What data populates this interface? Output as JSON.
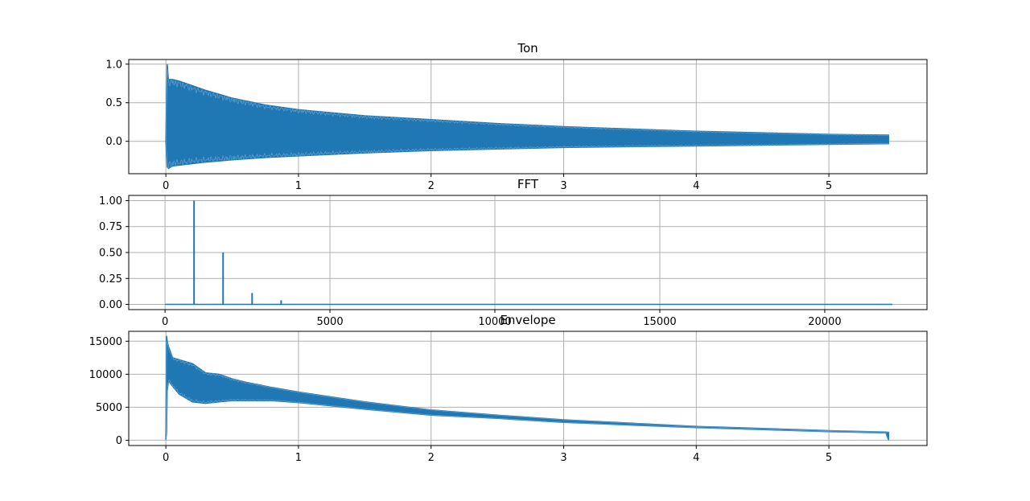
{
  "colors": {
    "series": "#1f77b4",
    "grid": "#b0b0b0",
    "axes": "#000000"
  },
  "chart_data": [
    {
      "type": "line",
      "title": "Ton",
      "xlabel": "",
      "ylabel": "",
      "xlim": [
        -0.28,
        5.74
      ],
      "ylim": [
        -0.42,
        1.06
      ],
      "grid": true,
      "xticks": [
        0,
        1,
        2,
        3,
        4,
        5
      ],
      "xtick_labels": [
        "0",
        "1",
        "2",
        "3",
        "4",
        "5"
      ],
      "yticks": [
        0.0,
        0.5,
        1.0
      ],
      "ytick_labels": [
        "0.0",
        "0.5",
        "1.0"
      ],
      "envelope": {
        "x": [
          0.0,
          0.01,
          0.02,
          0.05,
          0.1,
          0.2,
          0.3,
          0.5,
          0.75,
          1.0,
          1.5,
          2.0,
          2.5,
          3.0,
          3.5,
          4.0,
          4.5,
          5.0,
          5.45
        ],
        "upper": [
          0.0,
          1.0,
          0.8,
          0.8,
          0.78,
          0.72,
          0.66,
          0.56,
          0.47,
          0.41,
          0.33,
          0.28,
          0.23,
          0.19,
          0.16,
          0.13,
          0.11,
          0.09,
          0.08
        ],
        "lower": [
          0.0,
          -0.33,
          -0.35,
          -0.32,
          -0.31,
          -0.29,
          -0.27,
          -0.24,
          -0.21,
          -0.19,
          -0.15,
          -0.12,
          -0.1,
          -0.08,
          -0.07,
          -0.06,
          -0.05,
          -0.04,
          -0.03
        ]
      }
    },
    {
      "type": "line",
      "title": "FFT",
      "xlabel": "",
      "ylabel": "",
      "xlim": [
        -1100,
        23100
      ],
      "ylim": [
        -0.05,
        1.05
      ],
      "grid": true,
      "xticks": [
        0,
        5000,
        10000,
        15000,
        20000
      ],
      "xtick_labels": [
        "0",
        "5000",
        "10000",
        "15000",
        "20000"
      ],
      "yticks": [
        0.0,
        0.25,
        0.5,
        0.75,
        1.0
      ],
      "ytick_labels": [
        "0.00",
        "0.25",
        "0.50",
        "0.75",
        "1.00"
      ],
      "baseline_x_range": [
        0,
        22050
      ],
      "peaks": [
        {
          "x": 880,
          "y": 1.0
        },
        {
          "x": 1760,
          "y": 0.5
        },
        {
          "x": 2640,
          "y": 0.11
        },
        {
          "x": 3520,
          "y": 0.04
        }
      ]
    },
    {
      "type": "line",
      "title": "Envelope",
      "xlabel": "",
      "ylabel": "",
      "xlim": [
        -0.28,
        5.74
      ],
      "ylim": [
        -800,
        16500
      ],
      "grid": true,
      "xticks": [
        0,
        1,
        2,
        3,
        4,
        5
      ],
      "xtick_labels": [
        "0",
        "1",
        "2",
        "3",
        "4",
        "5"
      ],
      "yticks": [
        0,
        5000,
        10000,
        15000
      ],
      "ytick_labels": [
        "0",
        "5000",
        "10000",
        "15000"
      ],
      "envelope": {
        "x": [
          0.0,
          0.005,
          0.01,
          0.02,
          0.05,
          0.1,
          0.2,
          0.3,
          0.4,
          0.5,
          0.6,
          0.7,
          0.8,
          1.0,
          1.5,
          2.0,
          2.5,
          3.0,
          3.5,
          4.0,
          4.5,
          5.0,
          5.43,
          5.45
        ],
        "upper": [
          1000,
          15800,
          15000,
          14200,
          12500,
          12200,
          11600,
          10200,
          10000,
          9300,
          8800,
          8400,
          8000,
          7300,
          5800,
          4600,
          3800,
          3100,
          2600,
          2100,
          1800,
          1450,
          1250,
          1200
        ],
        "lower": [
          0,
          1200,
          7500,
          9000,
          8200,
          7000,
          5800,
          5600,
          5800,
          6000,
          6000,
          6000,
          6000,
          5700,
          4700,
          3800,
          3300,
          2700,
          2300,
          1900,
          1600,
          1300,
          1100,
          0
        ]
      }
    }
  ]
}
